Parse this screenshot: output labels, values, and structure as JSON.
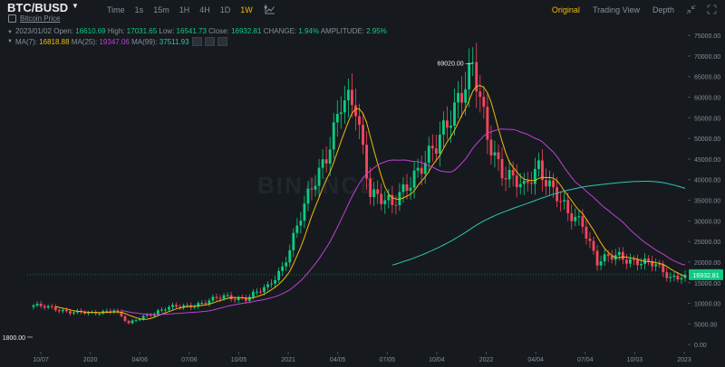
{
  "header": {
    "pair": "BTC/BUSD",
    "subtitle": "Bitcoin Price",
    "intervals": [
      "Time",
      "1s",
      "15m",
      "1H",
      "4H",
      "1D",
      "1W"
    ],
    "active_interval": "1W",
    "views": [
      "Original",
      "Trading View",
      "Depth"
    ],
    "active_view": "Original"
  },
  "ohlc": {
    "date": "2023/01/02",
    "open_label": "Open:",
    "open": "16610.69",
    "high_label": "High:",
    "high": "17031.65",
    "low_label": "Low:",
    "low": "16541.73",
    "close_label": "Close:",
    "close": "16932.81",
    "change_label": "CHANGE:",
    "change": "1.94%",
    "amplitude_label": "AMPLITUDE:",
    "amplitude": "2.95%"
  },
  "ma": {
    "ma7_label": "MA(7):",
    "ma7": "16818.88",
    "ma25_label": "MA(25):",
    "ma25": "19347.06",
    "ma99_label": "MA(99):",
    "ma99": "37511.93"
  },
  "colors": {
    "up": "#0ecb81",
    "down": "#f6465d",
    "ma7": "#f0b90b",
    "ma25": "#c13ed6",
    "ma99": "#2ec5b3",
    "accent": "#f0b90b"
  },
  "watermark": "BINANCE",
  "chart_data": {
    "type": "candlestick",
    "y_axis_labels": [
      "75000.00",
      "70000.00",
      "65000.00",
      "60000.00",
      "55000.00",
      "50000.00",
      "45000.00",
      "40000.00",
      "35000.00",
      "30000.00",
      "25000.00",
      "20000.00",
      "15000.00",
      "10000.00",
      "5000.00",
      "0.00"
    ],
    "y_axis_values": [
      75000,
      70000,
      65000,
      60000,
      55000,
      50000,
      45000,
      40000,
      35000,
      30000,
      25000,
      20000,
      15000,
      10000,
      5000,
      0
    ],
    "x_axis_labels": [
      "10/07",
      "2020",
      "04/06",
      "07/06",
      "10/05",
      "2021",
      "04/05",
      "07/05",
      "10/04",
      "2022",
      "04/04",
      "07/04",
      "10/03",
      "2023"
    ],
    "ylim": [
      -1500,
      77000
    ],
    "last_price": "16932.81",
    "last_price_value": 16932.81,
    "max_marker": "69020.00",
    "max_value": 69020,
    "min_marker": "1800.00",
    "min_value": 1800,
    "grid": false,
    "series": [
      {
        "name": "MA(7)",
        "value": 16818.88
      },
      {
        "name": "MA(25)",
        "value": 19347.06
      },
      {
        "name": "MA(99)",
        "value": 37511.93
      }
    ]
  }
}
